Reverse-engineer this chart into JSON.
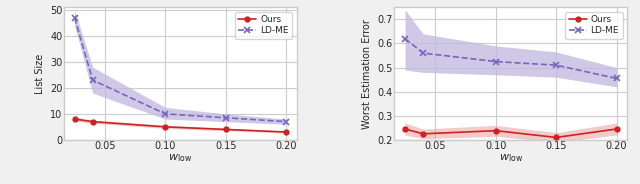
{
  "x": [
    0.025,
    0.04,
    0.1,
    0.15,
    0.2
  ],
  "left": {
    "ours_mean": [
      8.0,
      7.0,
      5.0,
      4.0,
      3.0
    ],
    "ours_lower": [
      7.2,
      6.4,
      4.4,
      3.5,
      2.6
    ],
    "ours_upper": [
      8.8,
      7.6,
      5.6,
      4.5,
      3.4
    ],
    "ldme_mean": [
      47.0,
      23.0,
      10.0,
      8.5,
      7.0
    ],
    "ldme_lower": [
      44.0,
      18.0,
      8.0,
      7.0,
      6.0
    ],
    "ldme_upper": [
      50.0,
      28.0,
      12.5,
      10.0,
      8.0
    ],
    "ylabel": "List Size",
    "xlabel": "$w_{\\mathrm{low}}$",
    "ylim": [
      0,
      51
    ],
    "yticks": [
      0,
      10,
      20,
      30,
      40,
      50
    ]
  },
  "right": {
    "ours_mean": [
      0.245,
      0.225,
      0.238,
      0.21,
      0.245
    ],
    "ours_lower": [
      0.22,
      0.205,
      0.215,
      0.19,
      0.22
    ],
    "ours_upper": [
      0.27,
      0.245,
      0.26,
      0.23,
      0.27
    ],
    "ldme_mean": [
      0.62,
      0.56,
      0.525,
      0.51,
      0.455
    ],
    "ldme_lower": [
      0.49,
      0.48,
      0.47,
      0.46,
      0.42
    ],
    "ldme_upper": [
      0.74,
      0.64,
      0.59,
      0.565,
      0.5
    ],
    "ylabel": "Worst Estimation Error",
    "xlabel": "$w_{\\mathrm{low}}$",
    "ylim": [
      0.2,
      0.75
    ],
    "yticks": [
      0.2,
      0.3,
      0.4,
      0.5,
      0.6,
      0.7
    ]
  },
  "ours_color": "#cc2222",
  "ldme_color": "#7766bb",
  "ldme_fill_color": "#c0b8e0",
  "ours_fill_color": "#e8a0a0",
  "legend_labels": [
    "Ours",
    "LD-ME"
  ],
  "xticks": [
    0.05,
    0.1,
    0.15,
    0.2
  ],
  "bg_color": "#eaeaf2"
}
